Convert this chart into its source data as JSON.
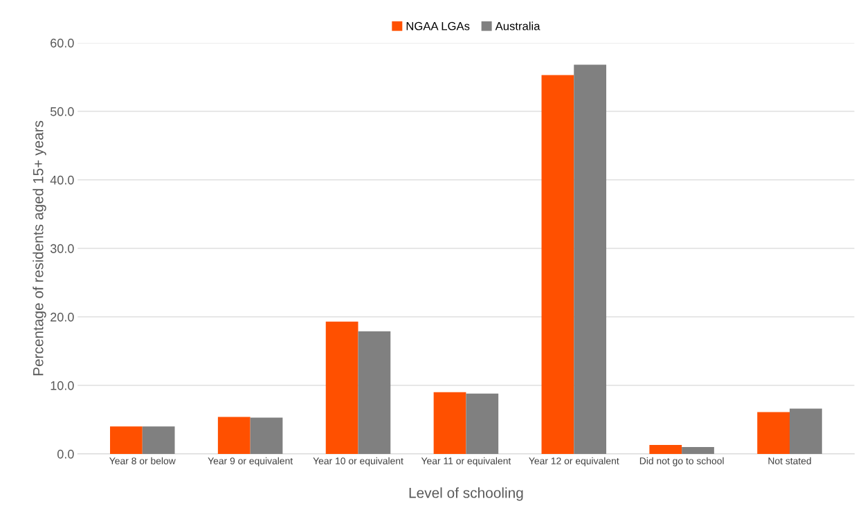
{
  "chart_data": {
    "type": "bar",
    "xlabel": "Level of schooling",
    "ylabel": "Percentage of residents aged 15+ years",
    "categories": [
      "Year 8 or below",
      "Year 9 or equivalent",
      "Year 10 or equivalent",
      "Year 11 or equivalent",
      "Year 12 or equivalent",
      "Did not go to school",
      "Not stated"
    ],
    "series": [
      {
        "name": "NGAA LGAs",
        "color": "#ff5000",
        "values": [
          4.0,
          5.4,
          19.3,
          9.0,
          55.3,
          1.3,
          6.1
        ]
      },
      {
        "name": "Australia",
        "color": "#808080",
        "values": [
          4.0,
          5.3,
          17.9,
          8.8,
          56.8,
          1.0,
          6.6
        ]
      }
    ],
    "ylim": [
      0,
      60
    ],
    "yticks": [
      {
        "value": 0,
        "label": "0.0"
      },
      {
        "value": 10,
        "label": "10.0"
      },
      {
        "value": 20,
        "label": "20.0"
      },
      {
        "value": 30,
        "label": "30.0"
      },
      {
        "value": 40,
        "label": "40.0"
      },
      {
        "value": 50,
        "label": "50.0"
      },
      {
        "value": 60,
        "label": "60.0"
      }
    ],
    "grid": "y",
    "legend": "top"
  }
}
